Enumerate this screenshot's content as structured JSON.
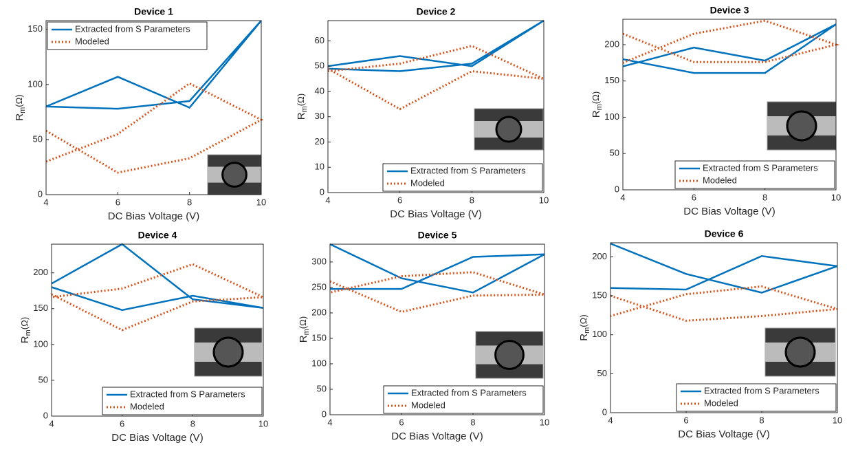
{
  "chart_data": [
    {
      "type": "line",
      "title": "Device 1",
      "x_label": "DC Bias Voltage (V)",
      "y_label": "R",
      "y_label_sub": "m",
      "y_label_unit": "(Ω)",
      "x": [
        4,
        6,
        8,
        10,
        8,
        6,
        4
      ],
      "xlim": [
        4,
        10
      ],
      "xticks": [
        4,
        6,
        8,
        10
      ],
      "ylim": [
        0,
        158
      ],
      "yticks": [
        0,
        50,
        100,
        150
      ],
      "legend": "upper left",
      "series": [
        {
          "name": "Extracted from S Parameters",
          "color": "#0072bd",
          "values": [
            80,
            107,
            79,
            158,
            85,
            78,
            80
          ]
        },
        {
          "name": "Modeled",
          "color": "#d95319",
          "values": [
            58,
            20,
            33,
            68,
            101,
            55,
            30
          ]
        }
      ]
    },
    {
      "type": "line",
      "title": "Device 2",
      "x_label": "DC Bias Voltage (V)",
      "y_label": "R",
      "y_label_sub": "m",
      "y_label_unit": "(Ω)",
      "x": [
        4,
        6,
        8,
        10,
        8,
        6,
        4
      ],
      "xlim": [
        4,
        10
      ],
      "xticks": [
        4,
        6,
        8,
        10
      ],
      "ylim": [
        0,
        68
      ],
      "yticks": [
        0,
        10,
        20,
        30,
        40,
        50,
        60
      ],
      "legend": "lower right",
      "series": [
        {
          "name": "Extracted from S Parameters",
          "color": "#0072bd",
          "values": [
            50,
            54,
            50,
            68,
            51,
            48,
            49
          ]
        },
        {
          "name": "Modeled",
          "color": "#d95319",
          "values": [
            49,
            33,
            48,
            45,
            58,
            51,
            48
          ]
        }
      ]
    },
    {
      "type": "line",
      "title": "Device 3",
      "x_label": "DC Bias Voltage (V)",
      "y_label": "R",
      "y_label_sub": "m",
      "y_label_unit": "(Ω)",
      "x": [
        4,
        6,
        8,
        10,
        8,
        6,
        4
      ],
      "xlim": [
        4,
        10
      ],
      "xticks": [
        4,
        6,
        8,
        10
      ],
      "ylim": [
        0,
        235
      ],
      "yticks": [
        0,
        50,
        100,
        150,
        200
      ],
      "legend": "lower right",
      "series": [
        {
          "name": "Extracted from S Parameters",
          "color": "#0072bd",
          "values": [
            170,
            196,
            178,
            228,
            161,
            161,
            180
          ]
        },
        {
          "name": "Modeled",
          "color": "#d95319",
          "values": [
            215,
            176,
            176,
            200,
            233,
            215,
            175
          ]
        }
      ]
    },
    {
      "type": "line",
      "title": "Device 4",
      "x_label": "DC Bias Voltage (V)",
      "y_label": "R",
      "y_label_sub": "m",
      "y_label_unit": "(Ω)",
      "x": [
        4,
        6,
        8,
        10,
        8,
        6,
        4
      ],
      "xlim": [
        4,
        10
      ],
      "xticks": [
        4,
        6,
        8,
        10
      ],
      "ylim": [
        0,
        240
      ],
      "yticks": [
        0,
        50,
        100,
        150,
        200
      ],
      "legend": "lower right",
      "series": [
        {
          "name": "Extracted from S Parameters",
          "color": "#0072bd",
          "values": [
            185,
            240,
            163,
            151,
            168,
            148,
            180
          ]
        },
        {
          "name": "Modeled",
          "color": "#d95319",
          "values": [
            170,
            120,
            160,
            166,
            212,
            178,
            166
          ]
        }
      ]
    },
    {
      "type": "line",
      "title": "Device 5",
      "x_label": "DC Bias Voltage (V)",
      "y_label": "R",
      "y_label_sub": "m",
      "y_label_unit": "(Ω)",
      "x": [
        4,
        6,
        8,
        10,
        8,
        6,
        4
      ],
      "xlim": [
        4,
        10
      ],
      "xticks": [
        4,
        6,
        8,
        10
      ],
      "ylim": [
        0,
        335
      ],
      "yticks": [
        0,
        50,
        100,
        150,
        200,
        250,
        300
      ],
      "legend": "lower right",
      "series": [
        {
          "name": "Extracted from S Parameters",
          "color": "#0072bd",
          "values": [
            335,
            268,
            240,
            315,
            310,
            247,
            247
          ]
        },
        {
          "name": "Modeled",
          "color": "#d95319",
          "values": [
            262,
            202,
            234,
            236,
            280,
            272,
            240
          ]
        }
      ]
    },
    {
      "type": "line",
      "title": "Device 6",
      "x_label": "DC Bias Voltage (V)",
      "y_label": "R",
      "y_label_sub": "m",
      "y_label_unit": "(Ω)",
      "x": [
        4,
        6,
        8,
        10,
        8,
        6,
        4
      ],
      "xlim": [
        4,
        10
      ],
      "xticks": [
        4,
        6,
        8,
        10
      ],
      "ylim": [
        0,
        218
      ],
      "yticks": [
        0,
        50,
        100,
        150,
        200
      ],
      "legend": "lower right",
      "series": [
        {
          "name": "Extracted from S Parameters",
          "color": "#0072bd",
          "values": [
            217,
            178,
            154,
            188,
            201,
            158,
            160
          ]
        },
        {
          "name": "Modeled",
          "color": "#d95319",
          "values": [
            150,
            118,
            124,
            133,
            162,
            152,
            124
          ]
        }
      ]
    }
  ]
}
